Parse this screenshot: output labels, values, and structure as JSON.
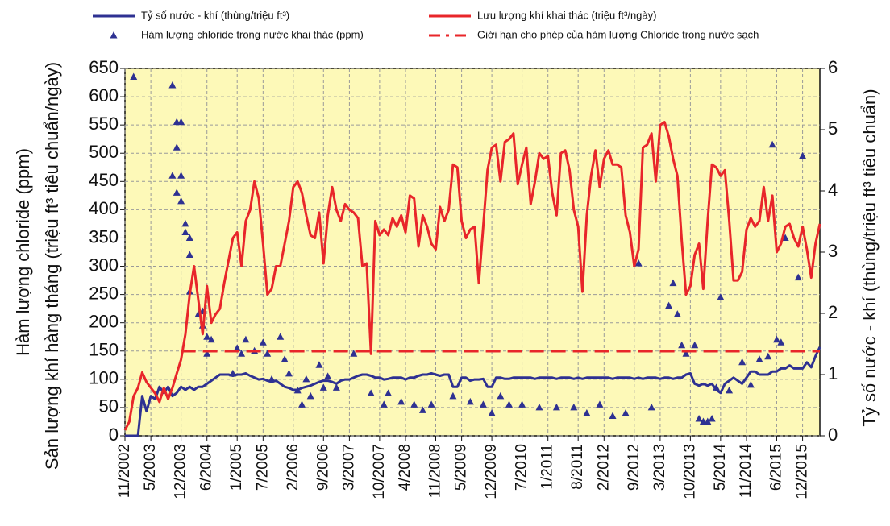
{
  "chart_data": {
    "type": "combo",
    "y_label": [
      "Hàm lượng chloride (ppm)",
      "Sản lượng khí hàng tháng (triệu ft³ tiêu chuẩn/ngày)"
    ],
    "y2_label": "Tỷ số nước - khí (thùng/triệu ft³ tiêu chuẩn)",
    "xlim": [
      "11/2002",
      "4/2016"
    ],
    "xticks": [
      "11/2002",
      "5/2003",
      "12/2003",
      "6/2004",
      "1/2005",
      "7/2005",
      "2/2006",
      "9/2006",
      "3/2007",
      "10/2007",
      "4/2008",
      "11/2008",
      "5/2009",
      "12/2009",
      "7/2010",
      "1/2011",
      "8/2011",
      "2/2012",
      "9/2012",
      "3/2013",
      "10/2013",
      "5/2014",
      "11/2014",
      "6/2015",
      "12/2015"
    ],
    "ylim": [
      0,
      650
    ],
    "yticks": [
      0,
      50,
      100,
      150,
      200,
      250,
      300,
      350,
      400,
      450,
      500,
      550,
      600,
      650
    ],
    "y2lim": [
      0,
      6
    ],
    "y2ticks": [
      0,
      1,
      2,
      3,
      4,
      5,
      6
    ],
    "grid": true,
    "x": [
      "11/2002",
      "12/2002",
      "1/2003",
      "2/2003",
      "3/2003",
      "4/2003",
      "5/2003",
      "6/2003",
      "7/2003",
      "8/2003",
      "9/2003",
      "10/2003",
      "11/2003",
      "12/2003",
      "1/2004",
      "2/2004",
      "3/2004",
      "4/2004",
      "5/2004",
      "6/2004",
      "7/2004",
      "8/2004",
      "9/2004",
      "10/2004",
      "11/2004",
      "12/2004",
      "1/2005",
      "2/2005",
      "3/2005",
      "4/2005",
      "5/2005",
      "6/2005",
      "7/2005",
      "8/2005",
      "9/2005",
      "10/2005",
      "11/2005",
      "12/2005",
      "1/2006",
      "2/2006",
      "3/2006",
      "4/2006",
      "5/2006",
      "6/2006",
      "7/2006",
      "8/2006",
      "9/2006",
      "10/2006",
      "11/2006",
      "12/2006",
      "1/2007",
      "2/2007",
      "3/2007",
      "4/2007",
      "5/2007",
      "6/2007",
      "7/2007",
      "8/2007",
      "9/2007",
      "10/2007",
      "11/2007",
      "12/2007",
      "1/2008",
      "2/2008",
      "3/2008",
      "4/2008",
      "5/2008",
      "6/2008",
      "7/2008",
      "8/2008",
      "9/2008",
      "10/2008",
      "11/2008",
      "12/2008",
      "1/2009",
      "2/2009",
      "3/2009",
      "4/2009",
      "5/2009",
      "6/2009",
      "7/2009",
      "8/2009",
      "9/2009",
      "10/2009",
      "11/2009",
      "12/2009",
      "1/2010",
      "2/2010",
      "3/2010",
      "4/2010",
      "5/2010",
      "6/2010",
      "7/2010",
      "8/2010",
      "9/2010",
      "10/2010",
      "11/2010",
      "12/2010",
      "1/2011",
      "2/2011",
      "3/2011",
      "4/2011",
      "5/2011",
      "6/2011",
      "7/2011",
      "8/2011",
      "9/2011",
      "10/2011",
      "11/2011",
      "12/2011",
      "1/2012",
      "2/2012",
      "3/2012",
      "4/2012",
      "5/2012",
      "6/2012",
      "7/2012",
      "8/2012",
      "9/2012",
      "10/2012",
      "11/2012",
      "12/2012",
      "1/2013",
      "2/2013",
      "3/2013",
      "4/2013",
      "5/2013",
      "6/2013",
      "7/2013",
      "8/2013",
      "9/2013",
      "10/2013",
      "11/2013",
      "12/2013",
      "1/2014",
      "2/2014",
      "3/2014",
      "4/2014",
      "5/2014",
      "6/2014",
      "7/2014",
      "8/2014",
      "9/2014",
      "10/2014",
      "11/2014",
      "12/2014",
      "1/2015",
      "2/2015",
      "3/2015",
      "4/2015",
      "5/2015",
      "6/2015",
      "7/2015",
      "8/2015",
      "9/2015",
      "10/2015",
      "11/2015",
      "12/2015",
      "1/2016",
      "2/2016",
      "3/2016",
      "4/2016"
    ],
    "series": [
      {
        "name": "Tỷ số nước - khí (thùng/triệu ft³)",
        "type": "line",
        "axis": "y2",
        "color": "#2e3192",
        "values": [
          0,
          0,
          0,
          0,
          0.65,
          0.4,
          0.65,
          0.6,
          0.8,
          0.7,
          0.8,
          0.65,
          0.7,
          0.8,
          0.75,
          0.8,
          0.75,
          0.8,
          0.8,
          0.85,
          0.9,
          0.95,
          1.0,
          1.0,
          1.0,
          0.98,
          1.0,
          1.0,
          1.02,
          0.98,
          0.95,
          0.92,
          0.93,
          0.9,
          0.88,
          0.9,
          0.85,
          0.8,
          0.78,
          0.75,
          0.75,
          0.78,
          0.8,
          0.82,
          0.85,
          0.88,
          0.9,
          0.9,
          0.88,
          0.85,
          0.9,
          0.92,
          0.92,
          0.95,
          0.98,
          1.0,
          1.0,
          0.98,
          0.95,
          0.95,
          0.92,
          0.93,
          0.95,
          0.95,
          0.95,
          0.92,
          0.95,
          0.95,
          0.98,
          1.0,
          1.0,
          1.02,
          1.0,
          0.98,
          1.0,
          1.0,
          0.8,
          0.8,
          0.95,
          0.95,
          0.9,
          0.92,
          0.92,
          0.93,
          0.8,
          0.8,
          0.95,
          0.95,
          0.93,
          0.93,
          0.95,
          0.95,
          0.95,
          0.95,
          0.95,
          0.93,
          0.95,
          0.95,
          0.95,
          0.95,
          0.93,
          0.95,
          0.95,
          0.95,
          0.93,
          0.95,
          0.93,
          0.95,
          0.95,
          0.95,
          0.95,
          0.95,
          0.95,
          0.93,
          0.95,
          0.95,
          0.95,
          0.95,
          0.93,
          0.95,
          0.93,
          0.95,
          0.95,
          0.95,
          0.93,
          0.95,
          0.95,
          0.93,
          0.95,
          0.95,
          1.0,
          1.02,
          0.85,
          0.82,
          0.85,
          0.82,
          0.85,
          0.75,
          0.7,
          0.85,
          0.9,
          0.95,
          0.9,
          0.85,
          0.95,
          1.05,
          1.05,
          1.0,
          1.0,
          1.0,
          1.05,
          1.05,
          1.1,
          1.1,
          1.15,
          1.1,
          1.1,
          1.1,
          1.2,
          1.12,
          1.3,
          1.45
        ]
      },
      {
        "name": "Hàm lượng chloride trong nước khai thác (ppm)",
        "type": "scatter",
        "color": "#2e3192",
        "x": [
          "1/2003",
          "10/2003",
          "10/2003",
          "11/2003",
          "11/2003",
          "11/2003",
          "12/2003",
          "12/2003",
          "12/2003",
          "1/2004",
          "1/2004",
          "2/2004",
          "2/2004",
          "2/2004",
          "4/2004",
          "5/2004",
          "5/2004",
          "6/2004",
          "6/2004",
          "7/2004",
          "12/2004",
          "1/2005",
          "2/2005",
          "3/2005",
          "5/2005",
          "7/2005",
          "8/2005",
          "9/2005",
          "11/2005",
          "12/2005",
          "1/2006",
          "3/2006",
          "4/2006",
          "5/2006",
          "6/2006",
          "8/2006",
          "9/2006",
          "10/2006",
          "12/2006",
          "4/2007",
          "8/2007",
          "11/2007",
          "12/2007",
          "3/2008",
          "6/2008",
          "8/2008",
          "10/2008",
          "3/2009",
          "7/2009",
          "10/2009",
          "12/2009",
          "2/2010",
          "4/2010",
          "7/2010",
          "11/2010",
          "3/2011",
          "7/2011",
          "10/2011",
          "1/2012",
          "4/2012",
          "7/2012",
          "10/2012",
          "1/2013",
          "5/2013",
          "6/2013",
          "7/2013",
          "8/2013",
          "9/2013",
          "11/2013",
          "12/2013",
          "1/2014",
          "2/2014",
          "3/2014",
          "4/2014",
          "5/2014",
          "7/2014",
          "10/2014",
          "12/2014",
          "2/2015",
          "4/2015",
          "5/2015",
          "6/2015",
          "7/2015",
          "8/2015",
          "11/2015",
          "12/2015"
        ],
        "values": [
          635,
          620,
          460,
          555,
          510,
          430,
          555,
          460,
          415,
          375,
          360,
          350,
          320,
          255,
          215,
          220,
          195,
          175,
          145,
          170,
          110,
          155,
          145,
          170,
          150,
          165,
          145,
          100,
          175,
          135,
          110,
          80,
          55,
          100,
          70,
          125,
          85,
          105,
          85,
          145,
          75,
          55,
          75,
          60,
          55,
          45,
          55,
          70,
          60,
          55,
          40,
          70,
          55,
          55,
          50,
          50,
          50,
          40,
          55,
          35,
          40,
          305,
          50,
          230,
          270,
          215,
          160,
          145,
          160,
          30,
          25,
          25,
          30,
          85,
          245,
          80,
          130,
          90,
          135,
          140,
          515,
          170,
          165,
          350,
          280,
          495
        ]
      },
      {
        "name": "Lưu lượng khí khai thác (triệu ft³/ngày)",
        "type": "line",
        "color": "#e8262a",
        "values": [
          10,
          25,
          70,
          85,
          112,
          95,
          85,
          75,
          60,
          85,
          65,
          85,
          110,
          135,
          180,
          250,
          300,
          240,
          180,
          265,
          200,
          215,
          225,
          270,
          310,
          350,
          360,
          300,
          380,
          400,
          450,
          420,
          340,
          250,
          260,
          300,
          300,
          340,
          380,
          440,
          450,
          430,
          390,
          355,
          350,
          395,
          305,
          390,
          440,
          400,
          380,
          410,
          400,
          395,
          385,
          300,
          305,
          145,
          380,
          355,
          365,
          355,
          385,
          370,
          390,
          360,
          425,
          420,
          335,
          390,
          370,
          340,
          330,
          405,
          380,
          400,
          480,
          475,
          380,
          350,
          365,
          370,
          270,
          370,
          470,
          510,
          515,
          450,
          520,
          525,
          535,
          445,
          480,
          510,
          410,
          450,
          500,
          490,
          495,
          430,
          390,
          500,
          505,
          470,
          400,
          370,
          255,
          390,
          460,
          505,
          440,
          490,
          505,
          480,
          480,
          475,
          390,
          360,
          300,
          330,
          510,
          515,
          535,
          450,
          550,
          555,
          530,
          490,
          460,
          345,
          250,
          265,
          320,
          340,
          260,
          380,
          480,
          475,
          460,
          470,
          380,
          275,
          275,
          290,
          365,
          385,
          370,
          380,
          440,
          380,
          425,
          325,
          340,
          370,
          375,
          350,
          335,
          370,
          330,
          280,
          340,
          375
        ]
      },
      {
        "name": "Giới hạn cho phép của hàm lượng Chloride trong nước sạch",
        "type": "line",
        "dashed": true,
        "color": "#e8262a",
        "x": [
          "12/2003",
          "4/2016"
        ],
        "values": [
          150,
          150
        ]
      }
    ]
  }
}
